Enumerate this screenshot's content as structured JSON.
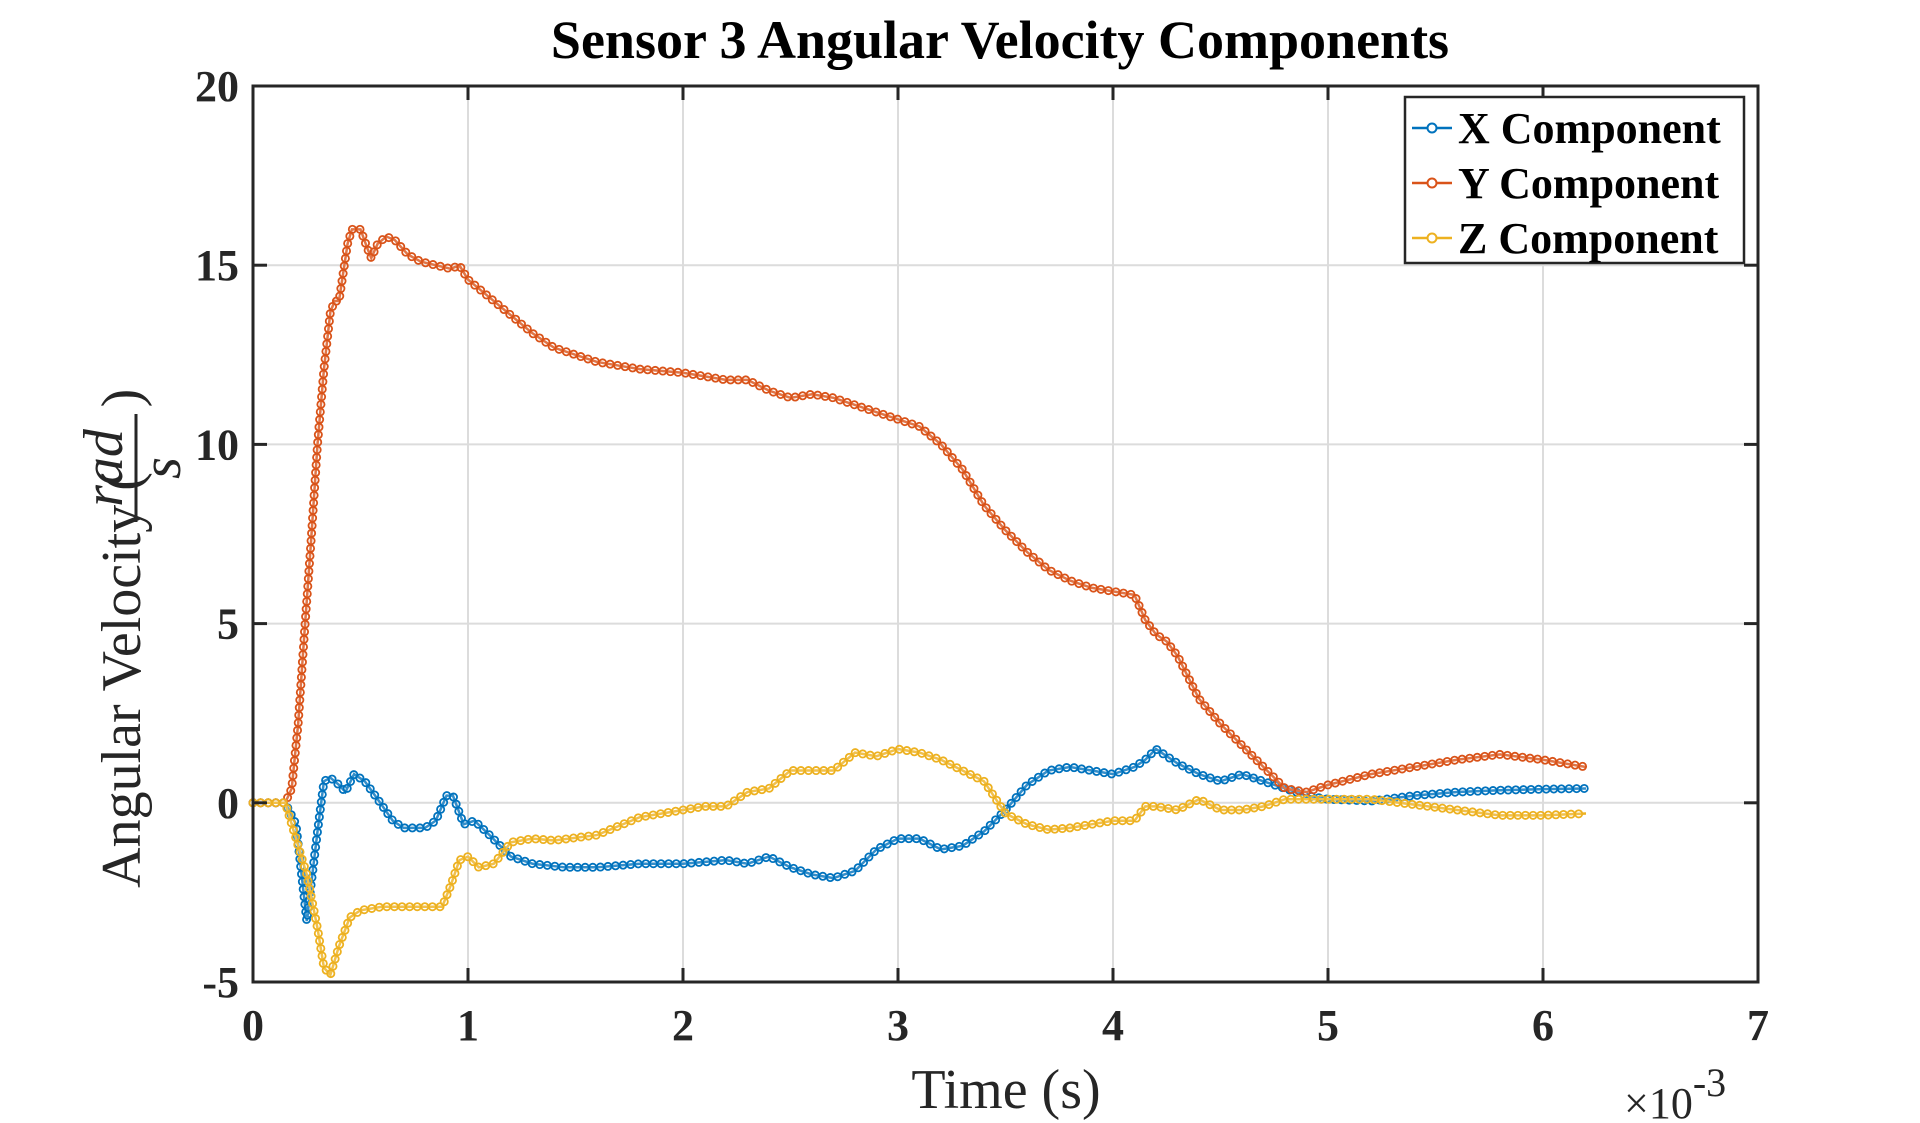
{
  "chart_data": {
    "type": "line",
    "title": "Sensor 3 Angular Velocity Components",
    "xlabel": "Time (s)",
    "ylabel_prefix": "Angular Velocity (",
    "ylabel_num": "rad",
    "ylabel_den": "s",
    "ylabel_suffix": ")",
    "x_exponent_prefix": "×10",
    "x_exponent": "-3",
    "xlim": [
      0,
      7
    ],
    "ylim": [
      -5,
      20
    ],
    "xticks": [
      0,
      1,
      2,
      3,
      4,
      5,
      6,
      7
    ],
    "yticks": [
      -5,
      0,
      5,
      10,
      15,
      20
    ],
    "xtick_labels": [
      "0",
      "1",
      "2",
      "3",
      "4",
      "5",
      "6",
      "7"
    ],
    "ytick_labels": [
      "-5",
      "0",
      "5",
      "10",
      "15",
      "20"
    ],
    "grid": true,
    "legend_position": "top-right",
    "series": [
      {
        "name": "X Component",
        "color": "#0072BD",
        "points": [
          [
            0,
            0
          ],
          [
            0.15,
            0
          ],
          [
            0.2,
            -0.6
          ],
          [
            0.25,
            -3.3
          ],
          [
            0.3,
            -0.8
          ],
          [
            0.33,
            0.6
          ],
          [
            0.36,
            0.7
          ],
          [
            0.4,
            0.5
          ],
          [
            0.43,
            0.3
          ],
          [
            0.47,
            0.8
          ],
          [
            0.52,
            0.6
          ],
          [
            0.58,
            0.1
          ],
          [
            0.65,
            -0.5
          ],
          [
            0.7,
            -0.7
          ],
          [
            0.8,
            -0.7
          ],
          [
            0.85,
            -0.5
          ],
          [
            0.9,
            0.2
          ],
          [
            0.93,
            0.2
          ],
          [
            0.98,
            -0.6
          ],
          [
            1.03,
            -0.5
          ],
          [
            1.1,
            -0.9
          ],
          [
            1.2,
            -1.5
          ],
          [
            1.3,
            -1.7
          ],
          [
            1.45,
            -1.8
          ],
          [
            1.6,
            -1.8
          ],
          [
            1.8,
            -1.7
          ],
          [
            2,
            -1.7
          ],
          [
            2.2,
            -1.6
          ],
          [
            2.3,
            -1.7
          ],
          [
            2.4,
            -1.5
          ],
          [
            2.5,
            -1.8
          ],
          [
            2.6,
            -2
          ],
          [
            2.7,
            -2.1
          ],
          [
            2.8,
            -1.9
          ],
          [
            2.9,
            -1.3
          ],
          [
            3,
            -1.0
          ],
          [
            3.1,
            -1.0
          ],
          [
            3.2,
            -1.3
          ],
          [
            3.3,
            -1.2
          ],
          [
            3.4,
            -0.8
          ],
          [
            3.5,
            -0.2
          ],
          [
            3.6,
            0.5
          ],
          [
            3.7,
            0.9
          ],
          [
            3.8,
            1.0
          ],
          [
            3.9,
            0.9
          ],
          [
            4,
            0.8
          ],
          [
            4.1,
            1.0
          ],
          [
            4.15,
            1.2
          ],
          [
            4.2,
            1.5
          ],
          [
            4.3,
            1.1
          ],
          [
            4.4,
            0.8
          ],
          [
            4.5,
            0.6
          ],
          [
            4.6,
            0.8
          ],
          [
            4.7,
            0.6
          ],
          [
            4.8,
            0.4
          ],
          [
            4.9,
            0.2
          ],
          [
            5,
            0.1
          ],
          [
            5.2,
            0.05
          ],
          [
            5.4,
            0.2
          ],
          [
            5.6,
            0.3
          ],
          [
            5.8,
            0.35
          ],
          [
            6,
            0.38
          ],
          [
            6.2,
            0.4
          ]
        ]
      },
      {
        "name": "Y Component",
        "color": "#D95319",
        "points": [
          [
            0,
            0
          ],
          [
            0.15,
            0
          ],
          [
            0.18,
            0.4
          ],
          [
            0.21,
            2.2
          ],
          [
            0.24,
            4.8
          ],
          [
            0.27,
            7.3
          ],
          [
            0.3,
            10
          ],
          [
            0.33,
            12.1
          ],
          [
            0.36,
            13.7
          ],
          [
            0.38,
            14.0
          ],
          [
            0.4,
            14.0
          ],
          [
            0.42,
            14.8
          ],
          [
            0.44,
            15.6
          ],
          [
            0.46,
            16.0
          ],
          [
            0.5,
            16.0
          ],
          [
            0.53,
            15.5
          ],
          [
            0.55,
            15.2
          ],
          [
            0.58,
            15.6
          ],
          [
            0.62,
            15.8
          ],
          [
            0.66,
            15.7
          ],
          [
            0.72,
            15.3
          ],
          [
            0.78,
            15.1
          ],
          [
            0.85,
            15.0
          ],
          [
            0.92,
            14.9
          ],
          [
            0.96,
            15.0
          ],
          [
            1,
            14.6
          ],
          [
            1.1,
            14.1
          ],
          [
            1.2,
            13.6
          ],
          [
            1.3,
            13.1
          ],
          [
            1.4,
            12.7
          ],
          [
            1.5,
            12.5
          ],
          [
            1.6,
            12.3
          ],
          [
            1.8,
            12.1
          ],
          [
            2,
            12
          ],
          [
            2.2,
            11.8
          ],
          [
            2.3,
            11.8
          ],
          [
            2.4,
            11.5
          ],
          [
            2.5,
            11.3
          ],
          [
            2.6,
            11.4
          ],
          [
            2.7,
            11.3
          ],
          [
            2.8,
            11.1
          ],
          [
            2.9,
            10.9
          ],
          [
            3,
            10.7
          ],
          [
            3.1,
            10.5
          ],
          [
            3.2,
            10
          ],
          [
            3.3,
            9.3
          ],
          [
            3.4,
            8.3
          ],
          [
            3.5,
            7.6
          ],
          [
            3.6,
            7
          ],
          [
            3.7,
            6.5
          ],
          [
            3.8,
            6.2
          ],
          [
            3.9,
            6.0
          ],
          [
            4,
            5.9
          ],
          [
            4.05,
            5.85
          ],
          [
            4.1,
            5.8
          ],
          [
            4.15,
            5.1
          ],
          [
            4.2,
            4.7
          ],
          [
            4.25,
            4.5
          ],
          [
            4.3,
            4.1
          ],
          [
            4.35,
            3.5
          ],
          [
            4.4,
            2.9
          ],
          [
            4.5,
            2.2
          ],
          [
            4.6,
            1.6
          ],
          [
            4.7,
            1.0
          ],
          [
            4.8,
            0.4
          ],
          [
            4.9,
            0.3
          ],
          [
            5,
            0.5
          ],
          [
            5.2,
            0.8
          ],
          [
            5.4,
            1.0
          ],
          [
            5.6,
            1.2
          ],
          [
            5.8,
            1.35
          ],
          [
            6,
            1.2
          ],
          [
            6.2,
            1.0
          ]
        ]
      },
      {
        "name": "Z Component",
        "color": "#EDB120",
        "points": [
          [
            0,
            0
          ],
          [
            0.15,
            0
          ],
          [
            0.2,
            -1.0
          ],
          [
            0.25,
            -2.0
          ],
          [
            0.3,
            -3.5
          ],
          [
            0.33,
            -4.6
          ],
          [
            0.36,
            -4.8
          ],
          [
            0.4,
            -4.0
          ],
          [
            0.45,
            -3.2
          ],
          [
            0.5,
            -3.0
          ],
          [
            0.6,
            -2.9
          ],
          [
            0.7,
            -2.9
          ],
          [
            0.8,
            -2.9
          ],
          [
            0.88,
            -2.9
          ],
          [
            0.92,
            -2.3
          ],
          [
            0.96,
            -1.6
          ],
          [
            1,
            -1.5
          ],
          [
            1.05,
            -1.8
          ],
          [
            1.12,
            -1.7
          ],
          [
            1.2,
            -1.1
          ],
          [
            1.3,
            -1.0
          ],
          [
            1.4,
            -1.05
          ],
          [
            1.6,
            -0.9
          ],
          [
            1.8,
            -0.4
          ],
          [
            2,
            -0.2
          ],
          [
            2.1,
            -0.1
          ],
          [
            2.2,
            -0.1
          ],
          [
            2.3,
            0.3
          ],
          [
            2.4,
            0.4
          ],
          [
            2.5,
            0.9
          ],
          [
            2.6,
            0.9
          ],
          [
            2.7,
            0.9
          ],
          [
            2.8,
            1.4
          ],
          [
            2.9,
            1.3
          ],
          [
            3,
            1.5
          ],
          [
            3.1,
            1.4
          ],
          [
            3.2,
            1.2
          ],
          [
            3.3,
            0.9
          ],
          [
            3.4,
            0.6
          ],
          [
            3.5,
            -0.3
          ],
          [
            3.6,
            -0.6
          ],
          [
            3.7,
            -0.75
          ],
          [
            3.8,
            -0.7
          ],
          [
            3.9,
            -0.6
          ],
          [
            4,
            -0.5
          ],
          [
            4.1,
            -0.5
          ],
          [
            4.15,
            -0.1
          ],
          [
            4.2,
            -0.1
          ],
          [
            4.3,
            -0.2
          ],
          [
            4.4,
            0.1
          ],
          [
            4.5,
            -0.2
          ],
          [
            4.6,
            -0.2
          ],
          [
            4.7,
            -0.1
          ],
          [
            4.8,
            0.1
          ],
          [
            5,
            0.1
          ],
          [
            5.2,
            0.1
          ],
          [
            5.4,
            -0.05
          ],
          [
            5.6,
            -0.2
          ],
          [
            5.8,
            -0.35
          ],
          [
            6,
            -0.35
          ],
          [
            6.2,
            -0.3
          ]
        ]
      }
    ]
  }
}
